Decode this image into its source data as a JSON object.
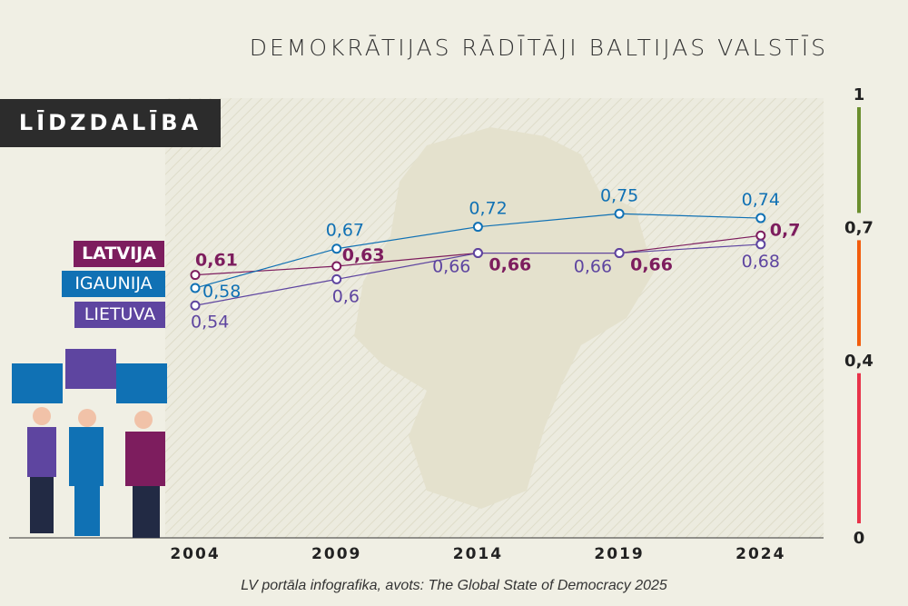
{
  "title": "DEMOKRĀTIJAS RĀDĪTĀJI BALTIJAS VALSTĪS",
  "section": "LĪDZDALĪBA",
  "source": "LV portāla infografika, avots: The Global State of Democracy 2025",
  "chart_data": {
    "type": "line",
    "x": [
      "2004",
      "2009",
      "2014",
      "2019",
      "2024"
    ],
    "series": [
      {
        "name": "LATVIJA",
        "color": "#7d1d5e",
        "values": [
          0.61,
          0.63,
          0.66,
          0.66,
          0.7
        ],
        "labels": [
          "0,61",
          "0,63",
          "0,66",
          "0,66",
          "0,7"
        ]
      },
      {
        "name": "IGAUNIJA",
        "color": "#1071b4",
        "values": [
          0.58,
          0.67,
          0.72,
          0.75,
          0.74
        ],
        "labels": [
          "0,58",
          "0,67",
          "0,72",
          "0,75",
          "0,74"
        ]
      },
      {
        "name": "LIETUVA",
        "color": "#5e45a0",
        "values": [
          0.54,
          0.6,
          0.66,
          0.66,
          0.68
        ],
        "labels": [
          "0,54",
          "0,6",
          "0,66",
          "0,66",
          "0,68"
        ]
      }
    ],
    "scale": {
      "ticks": [
        "1",
        "0,7",
        "0,4",
        "0"
      ],
      "bands": [
        {
          "from": 0.7,
          "to": 1,
          "color": "#6b8e2e"
        },
        {
          "from": 0.4,
          "to": 0.7,
          "color": "#f25c0c"
        },
        {
          "from": 0,
          "to": 0.4,
          "color": "#e8334a"
        }
      ]
    }
  }
}
